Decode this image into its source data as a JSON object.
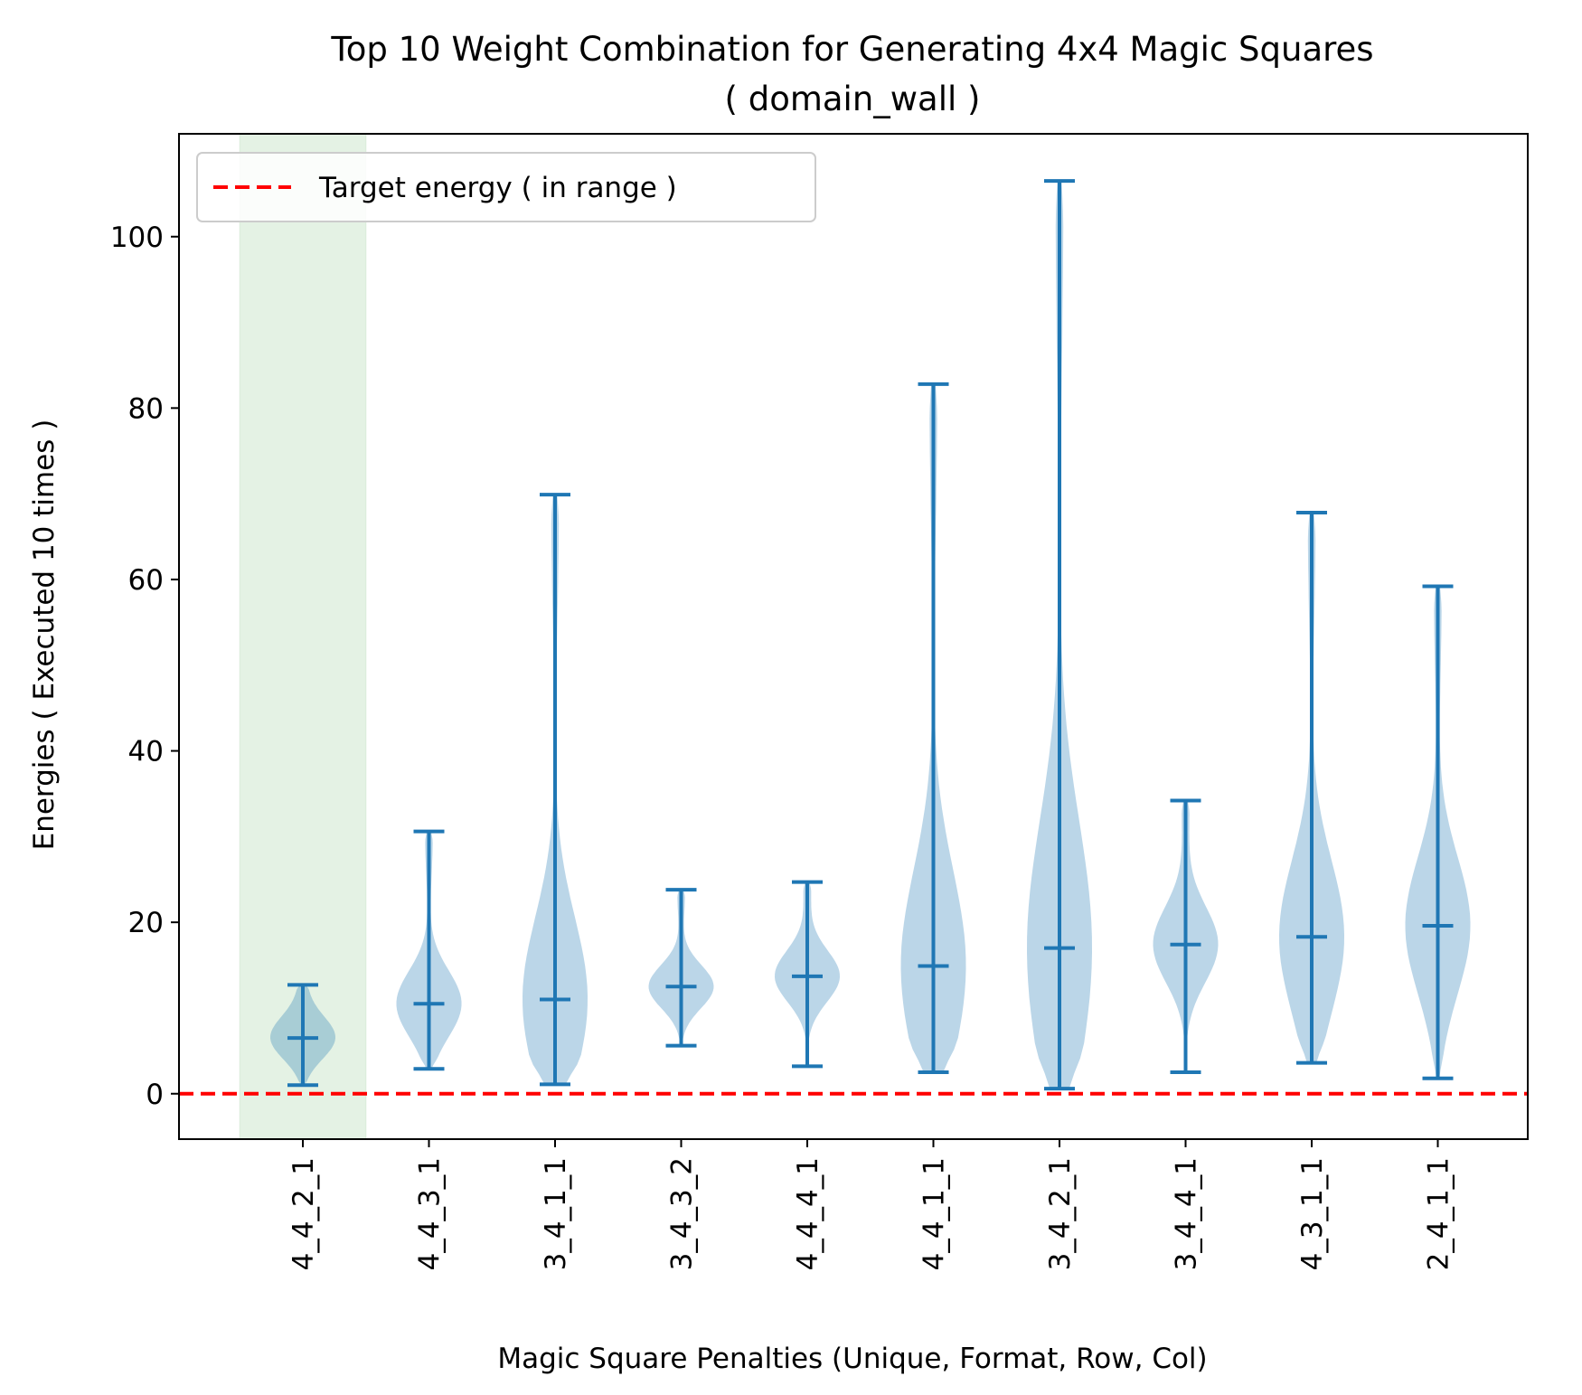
{
  "chart_data": {
    "type": "violin",
    "title": "Top 10 Weight Combination for Generating 4x4 Magic Squares",
    "subtitle": "( domain_wall )",
    "xlabel": "Magic Square Penalties (Unique, Format, Row, Col)",
    "ylabel": "Energies ( Executed 10 times )",
    "ylim": [
      -5.3,
      112
    ],
    "yticks": [
      0,
      20,
      40,
      60,
      80,
      100
    ],
    "categories": [
      "4_4_2_1",
      "4_4_3_1",
      "3_4_1_1",
      "3_4_3_2",
      "4_4_4_1",
      "4_4_1_1",
      "3_4_2_1",
      "3_4_4_1",
      "4_3_1_1",
      "2_4_1_1"
    ],
    "stats": [
      {
        "min": 1.0,
        "max": 12.7,
        "mean": 6.5
      },
      {
        "min": 2.9,
        "max": 30.6,
        "mean": 10.5
      },
      {
        "min": 1.1,
        "max": 69.9,
        "mean": 11.0
      },
      {
        "min": 5.6,
        "max": 23.8,
        "mean": 12.5
      },
      {
        "min": 3.2,
        "max": 24.7,
        "mean": 13.7
      },
      {
        "min": 2.5,
        "max": 82.8,
        "mean": 14.9
      },
      {
        "min": 0.6,
        "max": 106.5,
        "mean": 17.0
      },
      {
        "min": 2.5,
        "max": 34.2,
        "mean": 17.4
      },
      {
        "min": 3.6,
        "max": 67.8,
        "mean": 18.3
      },
      {
        "min": 1.8,
        "max": 59.2,
        "mean": 19.6
      }
    ],
    "target_energy": 0,
    "highlighted_category": "4_4_2_1",
    "legend": {
      "label": "Target energy ( in range )",
      "placement": "upper left"
    },
    "colors": {
      "violin_body": "#1f77b4",
      "violin_lines": "#1f77b4",
      "target_line": "#ff0000",
      "highlight_band": "#d9ecd9"
    },
    "grid": false
  }
}
